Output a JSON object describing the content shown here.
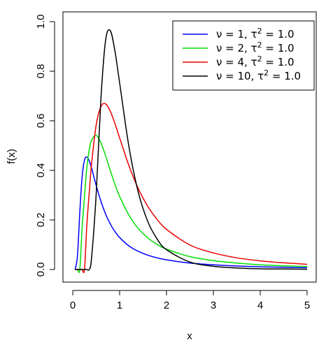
{
  "chart_data": {
    "type": "line",
    "title": "",
    "xlabel": "x",
    "ylabel": "f(x)",
    "xlim": [
      0,
      5
    ],
    "ylim": [
      0,
      1.0
    ],
    "x_ticks": [
      "0",
      "1",
      "2",
      "3",
      "4",
      "5"
    ],
    "y_ticks": [
      "0.0",
      "0.2",
      "0.4",
      "0.6",
      "0.8",
      "1.0"
    ],
    "grid": false,
    "legend_position": "top-right",
    "series": [
      {
        "name": "ν = 1, τ² = 1.0",
        "label_parts": {
          "prefix": "ν = 1, τ",
          "sup": "2",
          "suffix": " = 1.0"
        },
        "color": "#0000FF",
        "nu": 1,
        "x": [
          0.05,
          0.1,
          0.15,
          0.2,
          0.25,
          0.3,
          0.35,
          0.4,
          0.5,
          0.6,
          0.7,
          0.8,
          0.9,
          1.0,
          1.2,
          1.4,
          1.6,
          1.8,
          2.0,
          2.5,
          3.0,
          3.5,
          4.0,
          4.5,
          5.0
        ],
        "y": [
          0.0,
          0.054,
          0.23,
          0.375,
          0.441,
          0.454,
          0.439,
          0.41,
          0.339,
          0.276,
          0.224,
          0.184,
          0.153,
          0.129,
          0.095,
          0.073,
          0.058,
          0.047,
          0.039,
          0.026,
          0.019,
          0.014,
          0.011,
          0.009,
          0.007
        ]
      },
      {
        "name": "ν = 2, τ² = 1.0",
        "label_parts": {
          "prefix": "ν = 2, τ",
          "sup": "2",
          "suffix": " = 1.0"
        },
        "color": "#00DD00",
        "nu": 2,
        "x": [
          0.05,
          0.1,
          0.15,
          0.2,
          0.25,
          0.3,
          0.35,
          0.4,
          0.5,
          0.6,
          0.7,
          0.8,
          0.9,
          1.0,
          1.2,
          1.4,
          1.6,
          1.8,
          2.0,
          2.5,
          3.0,
          3.5,
          4.0,
          4.5,
          5.0
        ],
        "y": [
          0.0,
          0.0,
          0.0,
          0.168,
          0.293,
          0.411,
          0.481,
          0.521,
          0.541,
          0.511,
          0.459,
          0.4,
          0.344,
          0.295,
          0.219,
          0.165,
          0.128,
          0.101,
          0.082,
          0.052,
          0.036,
          0.026,
          0.019,
          0.015,
          0.012
        ]
      },
      {
        "name": "ν = 4, τ² = 1.0",
        "label_parts": {
          "prefix": "ν = 4, τ",
          "sup": "2",
          "suffix": " = 1.0"
        },
        "color": "#EE0000",
        "nu": 4,
        "x": [
          0.05,
          0.1,
          0.15,
          0.2,
          0.25,
          0.3,
          0.35,
          0.4,
          0.5,
          0.6,
          0.7,
          0.8,
          0.9,
          1.0,
          1.2,
          1.4,
          1.6,
          1.8,
          2.0,
          2.5,
          3.0,
          3.5,
          4.0,
          4.5,
          5.0
        ],
        "y": [
          0.0,
          0.0,
          0.0,
          0.0,
          0.0,
          0.178,
          0.306,
          0.423,
          0.583,
          0.657,
          0.668,
          0.639,
          0.589,
          0.531,
          0.418,
          0.326,
          0.255,
          0.202,
          0.162,
          0.099,
          0.067,
          0.047,
          0.035,
          0.027,
          0.021
        ]
      },
      {
        "name": "ν = 10, τ² = 1.0",
        "label_parts": {
          "prefix": "ν = 10, τ",
          "sup": "2",
          "suffix": " = 1.0"
        },
        "color": "#000000",
        "nu": 10,
        "x": [
          0.05,
          0.1,
          0.15,
          0.2,
          0.25,
          0.3,
          0.35,
          0.4,
          0.5,
          0.6,
          0.7,
          0.8,
          0.9,
          1.0,
          1.2,
          1.4,
          1.6,
          1.8,
          2.0,
          2.5,
          3.0,
          3.5,
          4.0,
          4.5,
          5.0
        ],
        "y": [
          0.0,
          0.0,
          0.0,
          0.0,
          0.0,
          0.0,
          0.0,
          0.044,
          0.305,
          0.686,
          0.924,
          0.964,
          0.881,
          0.753,
          0.494,
          0.31,
          0.194,
          0.123,
          0.08,
          0.03,
          0.013,
          0.006,
          0.003,
          0.002,
          0.001
        ]
      }
    ]
  }
}
